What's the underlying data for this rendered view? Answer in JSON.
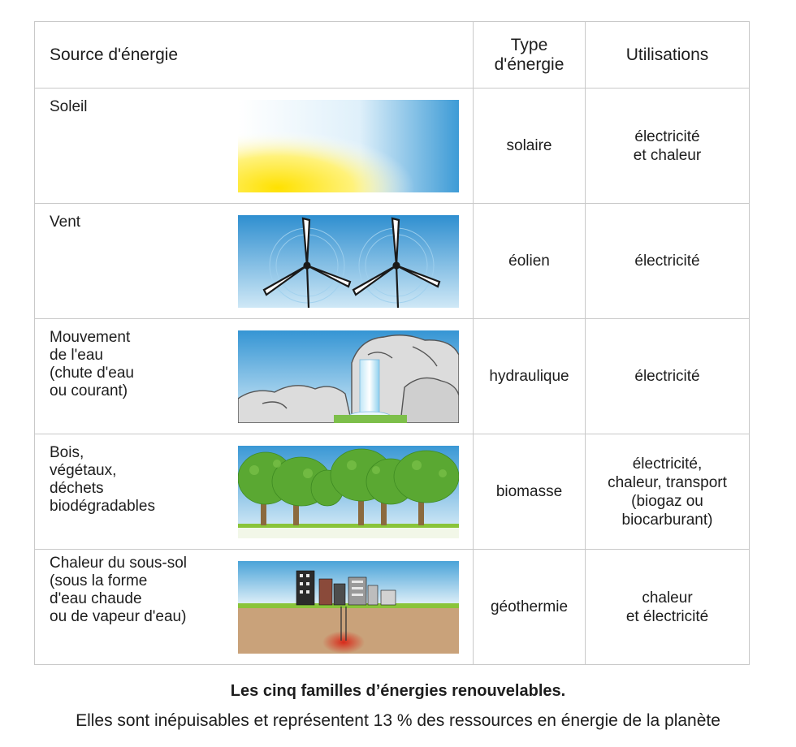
{
  "table": {
    "headers": {
      "source": "Source d'énergie",
      "type": [
        "Type",
        "d'énergie"
      ],
      "uses": "Utilisations"
    },
    "rows": [
      {
        "source": [
          "Soleil"
        ],
        "image": "sun-illustration",
        "type": "solaire",
        "uses": [
          "électricité",
          "et chaleur"
        ]
      },
      {
        "source": [
          "Vent"
        ],
        "image": "wind-turbines-illustration",
        "type": "éolien",
        "uses": [
          "électricité"
        ]
      },
      {
        "source": [
          "Mouvement",
          "de l'eau",
          "(chute d'eau",
          "ou courant)"
        ],
        "image": "waterfall-illustration",
        "type": "hydraulique",
        "uses": [
          "électricité"
        ]
      },
      {
        "source": [
          "Bois,",
          "végétaux,",
          "déchets",
          "biodégradables"
        ],
        "image": "trees-illustration",
        "type": "biomasse",
        "uses": [
          "électricité,",
          "chaleur, transport",
          "(biogaz ou",
          "biocarburant)"
        ]
      },
      {
        "source": [
          "Chaleur du sous-sol",
          "(sous la forme",
          "d'eau chaude",
          "ou de vapeur d'eau)"
        ],
        "image": "geothermal-city-illustration",
        "type": "géothermie",
        "uses": [
          "chaleur",
          "et électricité"
        ]
      }
    ]
  },
  "caption": {
    "title": "Les cinq familles d’énergies renouvelables.",
    "subtitle": "Elles sont inépuisables et représentent 13 % des ressources en énergie de la planète"
  },
  "colors": {
    "border": "#c9c9c9",
    "sky": "#4aa3d8",
    "sun": "#ffe600",
    "grass": "#8ac43a",
    "foliage": "#5aa832",
    "soil": "#c9a27a",
    "heat": "#d82a1a"
  }
}
